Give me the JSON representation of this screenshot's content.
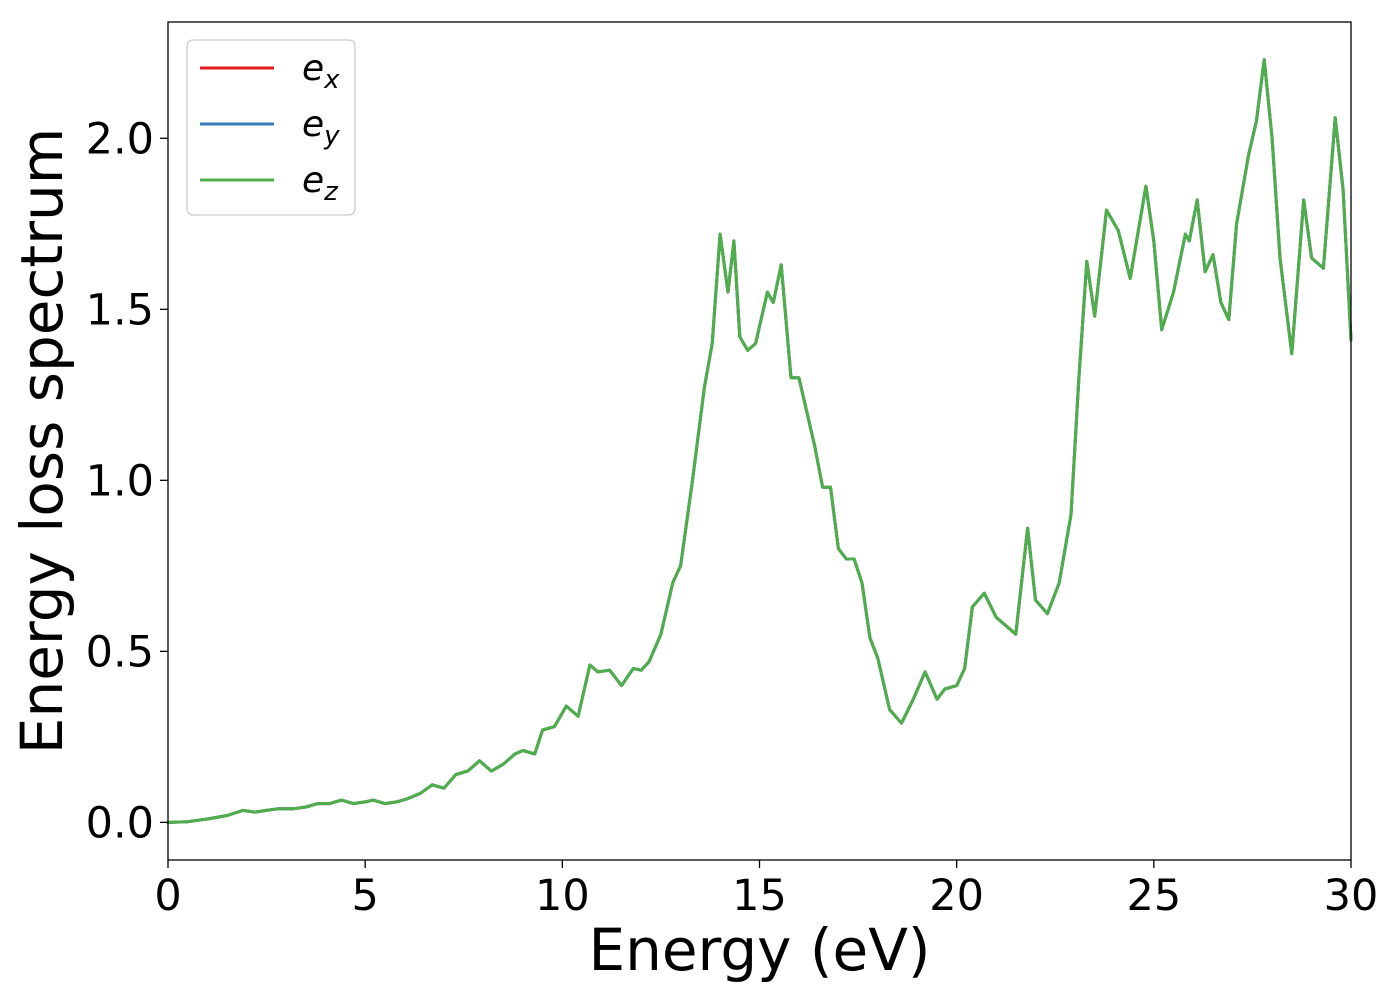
{
  "chart_data": {
    "type": "line",
    "title": "",
    "xlabel": "Energy (eV)",
    "ylabel": "Energy loss spectrum",
    "xlim": [
      0,
      30
    ],
    "ylim": [
      -0.11,
      2.34
    ],
    "xticks": [
      0,
      5,
      10,
      15,
      20,
      25,
      30
    ],
    "xtick_labels": [
      "0",
      "5",
      "10",
      "15",
      "20",
      "25",
      "30"
    ],
    "yticks": [
      0.0,
      0.5,
      1.0,
      1.5,
      2.0
    ],
    "ytick_labels": [
      "0.0",
      "0.5",
      "1.0",
      "1.5",
      "2.0"
    ],
    "grid": false,
    "legend_position": "top-left",
    "series": [
      {
        "name": "e",
        "sub": "x",
        "color": "#e41a1c"
      },
      {
        "name": "e",
        "sub": "y",
        "color": "#377eb8"
      },
      {
        "name": "e",
        "sub": "z",
        "color": "#4daf4a"
      }
    ],
    "x": [
      0,
      0.5,
      1.0,
      1.5,
      1.9,
      2.2,
      2.5,
      2.8,
      3.2,
      3.5,
      3.8,
      4.1,
      4.4,
      4.7,
      5.0,
      5.2,
      5.5,
      5.8,
      6.1,
      6.4,
      6.7,
      7.0,
      7.3,
      7.6,
      7.9,
      8.2,
      8.5,
      8.8,
      9.0,
      9.3,
      9.5,
      9.8,
      10.1,
      10.4,
      10.7,
      10.9,
      11.2,
      11.5,
      11.8,
      12.0,
      12.2,
      12.5,
      12.8,
      13.0,
      13.3,
      13.6,
      13.8,
      14.0,
      14.2,
      14.35,
      14.5,
      14.7,
      14.9,
      15.0,
      15.2,
      15.35,
      15.55,
      15.8,
      16.0,
      16.2,
      16.4,
      16.6,
      16.8,
      17.0,
      17.2,
      17.4,
      17.6,
      17.8,
      18.0,
      18.3,
      18.6,
      18.9,
      19.2,
      19.5,
      19.7,
      20.0,
      20.2,
      20.4,
      20.7,
      21.0,
      21.2,
      21.5,
      21.8,
      22.0,
      22.3,
      22.6,
      22.9,
      23.1,
      23.3,
      23.5,
      23.8,
      24.1,
      24.4,
      24.8,
      25.0,
      25.2,
      25.5,
      25.8,
      25.9,
      26.1,
      26.3,
      26.5,
      26.7,
      26.9,
      27.1,
      27.4,
      27.6,
      27.8,
      28.0,
      28.2,
      28.5,
      28.8,
      29.0,
      29.3,
      29.6,
      29.8,
      30.0
    ],
    "y": [
      0.0,
      0.002,
      0.01,
      0.02,
      0.035,
      0.03,
      0.035,
      0.04,
      0.04,
      0.045,
      0.055,
      0.055,
      0.065,
      0.055,
      0.06,
      0.065,
      0.055,
      0.06,
      0.07,
      0.085,
      0.11,
      0.1,
      0.14,
      0.15,
      0.18,
      0.15,
      0.17,
      0.2,
      0.21,
      0.2,
      0.27,
      0.28,
      0.34,
      0.31,
      0.46,
      0.44,
      0.445,
      0.4,
      0.45,
      0.445,
      0.47,
      0.55,
      0.7,
      0.75,
      1.0,
      1.27,
      1.4,
      1.72,
      1.55,
      1.7,
      1.42,
      1.38,
      1.4,
      1.45,
      1.55,
      1.52,
      1.63,
      1.3,
      1.3,
      1.2,
      1.1,
      0.98,
      0.98,
      0.8,
      0.77,
      0.77,
      0.7,
      0.54,
      0.48,
      0.33,
      0.29,
      0.36,
      0.44,
      0.36,
      0.39,
      0.4,
      0.45,
      0.63,
      0.67,
      0.6,
      0.58,
      0.55,
      0.86,
      0.65,
      0.61,
      0.7,
      0.9,
      1.3,
      1.64,
      1.48,
      1.79,
      1.73,
      1.59,
      1.86,
      1.7,
      1.44,
      1.55,
      1.72,
      1.7,
      1.82,
      1.61,
      1.66,
      1.52,
      1.47,
      1.75,
      1.95,
      2.05,
      2.23,
      2.0,
      1.65,
      1.37,
      1.82,
      1.65,
      1.62,
      2.06,
      1.85,
      1.41
    ]
  }
}
